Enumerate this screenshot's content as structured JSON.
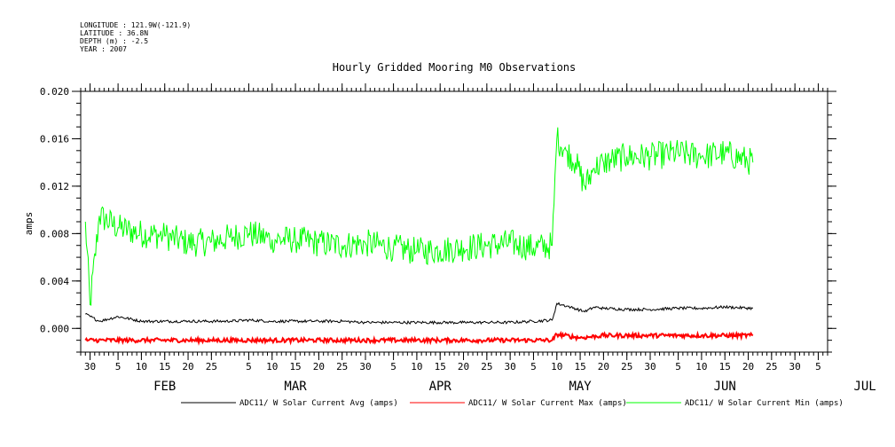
{
  "header": {
    "lines": [
      "LONGITUDE : 121.9W(-121.9)",
      "LATITUDE : 36.8N",
      "DEPTH (m) : -2.5",
      "YEAR : 2007"
    ]
  },
  "chart_data": {
    "type": "line",
    "title": "Hourly Gridded Mooring M0 Observations",
    "ylabel": "amps",
    "xlabel": "",
    "xlim": [
      "2007-01-28",
      "2007-07-07"
    ],
    "ylim": [
      -0.002,
      0.02
    ],
    "y_ticks": [
      "0.020",
      "0.016",
      "0.012",
      "0.008",
      "0.004",
      "0.000"
    ],
    "y_tick_values": [
      0.02,
      0.016,
      0.012,
      0.008,
      0.004,
      0.0
    ],
    "x_day_ticks": [
      {
        "date": "2007-01-30",
        "label": "30"
      },
      {
        "date": "2007-02-05",
        "label": "5"
      },
      {
        "date": "2007-02-10",
        "label": "10"
      },
      {
        "date": "2007-02-15",
        "label": "15"
      },
      {
        "date": "2007-02-20",
        "label": "20"
      },
      {
        "date": "2007-02-25",
        "label": "25"
      },
      {
        "date": "2007-03-05",
        "label": "5"
      },
      {
        "date": "2007-03-10",
        "label": "10"
      },
      {
        "date": "2007-03-15",
        "label": "15"
      },
      {
        "date": "2007-03-20",
        "label": "20"
      },
      {
        "date": "2007-03-25",
        "label": "25"
      },
      {
        "date": "2007-03-30",
        "label": "30"
      },
      {
        "date": "2007-04-05",
        "label": "5"
      },
      {
        "date": "2007-04-10",
        "label": "10"
      },
      {
        "date": "2007-04-15",
        "label": "15"
      },
      {
        "date": "2007-04-20",
        "label": "20"
      },
      {
        "date": "2007-04-25",
        "label": "25"
      },
      {
        "date": "2007-04-30",
        "label": "30"
      },
      {
        "date": "2007-05-05",
        "label": "5"
      },
      {
        "date": "2007-05-10",
        "label": "10"
      },
      {
        "date": "2007-05-15",
        "label": "15"
      },
      {
        "date": "2007-05-20",
        "label": "20"
      },
      {
        "date": "2007-05-25",
        "label": "25"
      },
      {
        "date": "2007-05-30",
        "label": "30"
      },
      {
        "date": "2007-06-05",
        "label": "5"
      },
      {
        "date": "2007-06-10",
        "label": "10"
      },
      {
        "date": "2007-06-15",
        "label": "15"
      },
      {
        "date": "2007-06-20",
        "label": "20"
      },
      {
        "date": "2007-06-25",
        "label": "25"
      },
      {
        "date": "2007-06-30",
        "label": "30"
      },
      {
        "date": "2007-07-05",
        "label": "5"
      }
    ],
    "x_month_labels": [
      {
        "date": "2007-02-15",
        "label": "FEB"
      },
      {
        "date": "2007-03-15",
        "label": "MAR"
      },
      {
        "date": "2007-04-15",
        "label": "APR"
      },
      {
        "date": "2007-05-15",
        "label": "MAY"
      },
      {
        "date": "2007-06-15",
        "label": "JUN"
      },
      {
        "date": "2007-07-15",
        "label": "JUL"
      }
    ],
    "legend_position": "bottom",
    "series": [
      {
        "name": "ADC11/ W Solar Current Avg (amps)",
        "color": "#000000",
        "x": [
          "2007-01-29",
          "2007-02-01",
          "2007-02-05",
          "2007-02-10",
          "2007-02-15",
          "2007-02-20",
          "2007-02-25",
          "2007-03-01",
          "2007-03-05",
          "2007-03-10",
          "2007-03-15",
          "2007-03-20",
          "2007-03-25",
          "2007-03-30",
          "2007-04-05",
          "2007-04-10",
          "2007-04-15",
          "2007-04-20",
          "2007-04-25",
          "2007-04-30",
          "2007-05-05",
          "2007-05-09",
          "2007-05-10",
          "2007-05-13",
          "2007-05-16",
          "2007-05-18",
          "2007-05-20",
          "2007-05-25",
          "2007-05-30",
          "2007-06-05",
          "2007-06-10",
          "2007-06-15",
          "2007-06-21"
        ],
        "values": [
          0.0012,
          0.0006,
          0.001,
          0.0006,
          0.0006,
          0.0006,
          0.0006,
          0.0006,
          0.0007,
          0.0006,
          0.0006,
          0.0006,
          0.0006,
          0.0005,
          0.0005,
          0.0005,
          0.0005,
          0.0005,
          0.0005,
          0.0005,
          0.0006,
          0.0007,
          0.0021,
          0.0018,
          0.0014,
          0.0018,
          0.0017,
          0.0016,
          0.0016,
          0.0017,
          0.0017,
          0.0018,
          0.0017
        ]
      },
      {
        "name": "ADC11/ W Solar Current Max (amps)",
        "color": "#ff0000",
        "x": [
          "2007-01-29",
          "2007-02-10",
          "2007-02-25",
          "2007-03-10",
          "2007-03-25",
          "2007-04-10",
          "2007-04-25",
          "2007-05-09",
          "2007-05-10",
          "2007-05-15",
          "2007-05-20",
          "2007-05-30",
          "2007-06-10",
          "2007-06-21"
        ],
        "values": [
          -0.001,
          -0.001,
          -0.001,
          -0.001,
          -0.001,
          -0.001,
          -0.001,
          -0.001,
          -0.0005,
          -0.0008,
          -0.0006,
          -0.0006,
          -0.0006,
          -0.0006
        ]
      },
      {
        "name": "ADC11/ W Solar Current Min (amps)",
        "color": "#00ff00",
        "x": [
          "2007-01-29",
          "2007-01-30",
          "2007-02-01",
          "2007-02-05",
          "2007-02-10",
          "2007-02-15",
          "2007-02-20",
          "2007-02-25",
          "2007-03-01",
          "2007-03-05",
          "2007-03-10",
          "2007-03-15",
          "2007-03-20",
          "2007-03-25",
          "2007-03-30",
          "2007-04-05",
          "2007-04-10",
          "2007-04-15",
          "2007-04-20",
          "2007-04-25",
          "2007-04-30",
          "2007-05-05",
          "2007-05-09",
          "2007-05-10",
          "2007-05-12",
          "2007-05-14",
          "2007-05-16",
          "2007-05-18",
          "2007-05-20",
          "2007-05-25",
          "2007-05-30",
          "2007-06-05",
          "2007-06-10",
          "2007-06-15",
          "2007-06-21"
        ],
        "values": [
          0.009,
          0.002,
          0.0095,
          0.0085,
          0.008,
          0.0078,
          0.0072,
          0.0073,
          0.0077,
          0.008,
          0.0075,
          0.0075,
          0.0072,
          0.007,
          0.0072,
          0.0068,
          0.0065,
          0.0066,
          0.0068,
          0.007,
          0.0072,
          0.0068,
          0.007,
          0.016,
          0.015,
          0.014,
          0.012,
          0.0135,
          0.014,
          0.0145,
          0.0145,
          0.0148,
          0.0145,
          0.0148,
          0.014
        ]
      }
    ]
  }
}
